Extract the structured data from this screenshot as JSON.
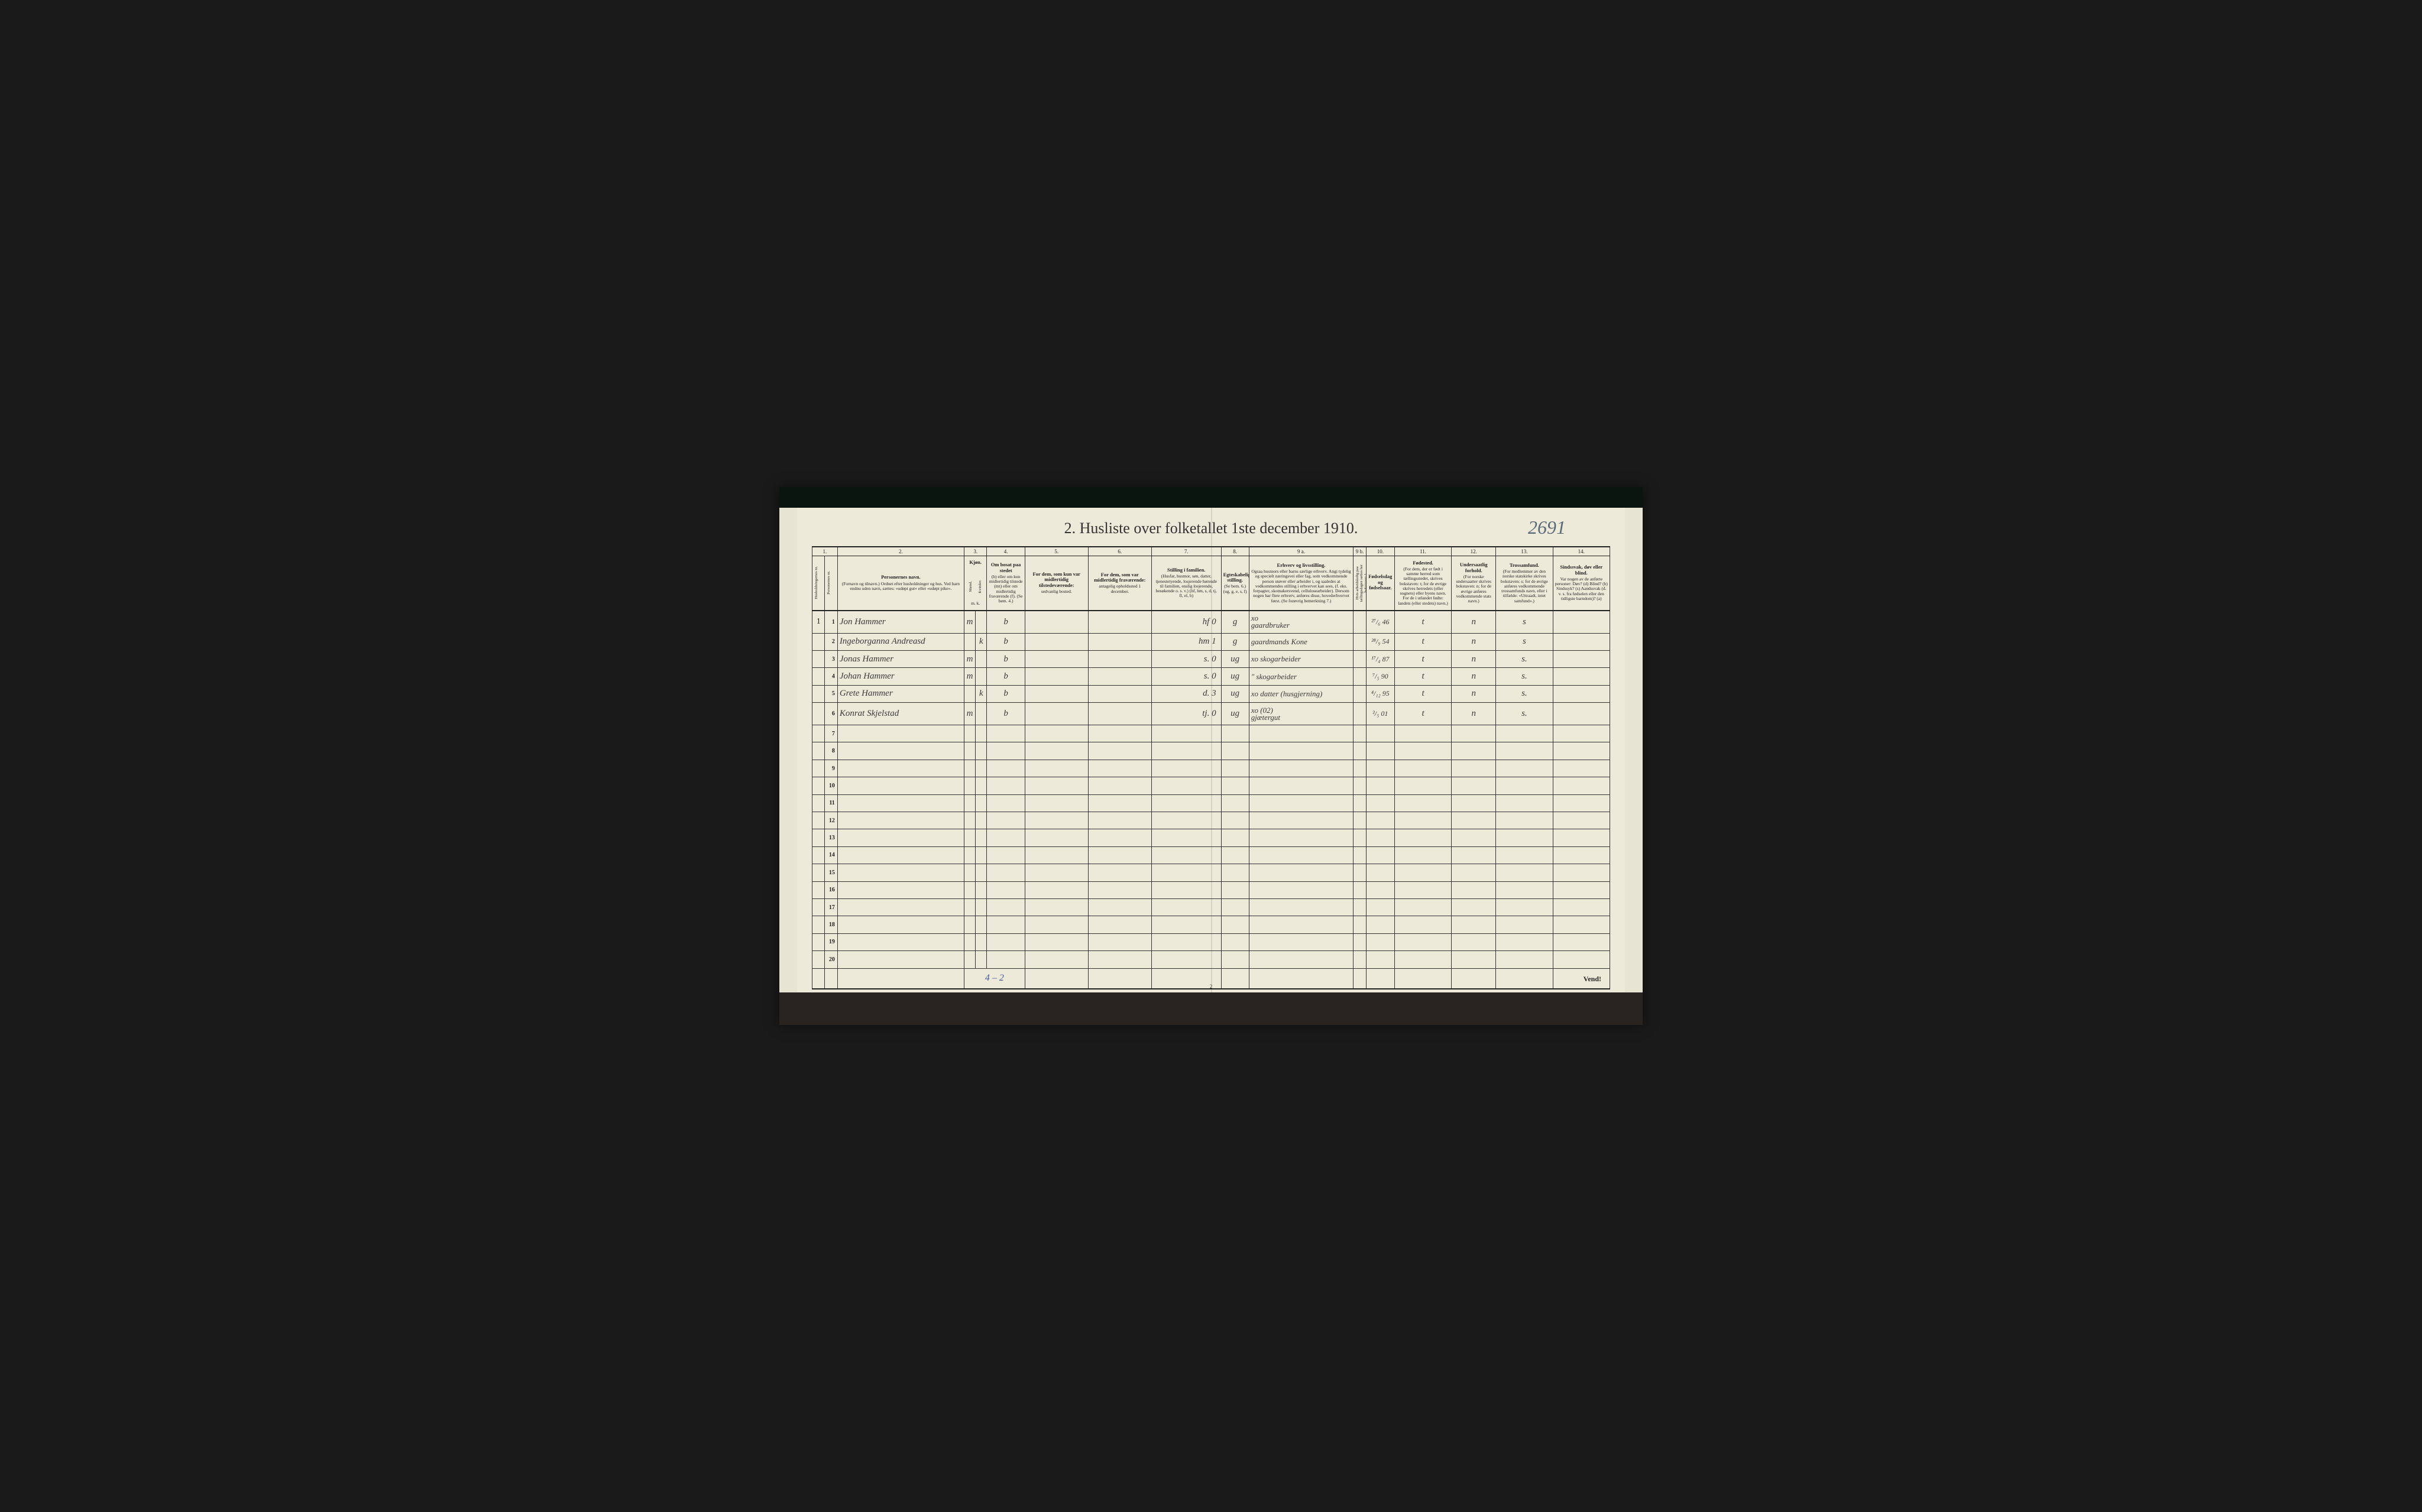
{
  "title": "2.  Husliste over folketallet 1ste december 1910.",
  "page_annotation": "2691",
  "footer_page_num": "2",
  "vend": "Vend!",
  "footer_tally": "4 – 2",
  "colors": {
    "paper": "#eeead9",
    "paper_outer": "#e8e4d4",
    "ink": "#222222",
    "handwriting": "#3a3a3a",
    "pencil": "#5a6a7a",
    "blue_pencil": "#4a5aa0",
    "border_dark": "#0a1510"
  },
  "column_numbers": [
    "1.",
    "2.",
    "3.",
    "4.",
    "5.",
    "6.",
    "7.",
    "8.",
    "9 a.",
    "9 b.",
    "10.",
    "11.",
    "12.",
    "13.",
    "14."
  ],
  "headers": {
    "h1": {
      "side_a": "Husholdningernes nr.",
      "side_b": "Personernes nr."
    },
    "h2": {
      "main": "Personernes navn.",
      "sub": "(Fornavn og tilnavn.)\nOrdnet efter husholdninger og hus.\nVed barn endnu uden navn, sættes: «udøpt gut» eller «udøpt pike»."
    },
    "h3": {
      "main": "Kjøn.",
      "a": "Mænd.",
      "b": "Kvinder.",
      "mk": "m.  k."
    },
    "h4": {
      "main": "Om bosat paa stedet",
      "sub": "(b) eller om kun midlertidig tilstede (mt) eller om midlertidig fraværende (f).\n(Se bem. 4.)"
    },
    "h5": {
      "main": "For dem, som kun var midlertidig tilstedeværende:",
      "sub": "sedvanlig bosted."
    },
    "h6": {
      "main": "For dem, som var midlertidig fraværende:",
      "sub": "antagelig opholdssted 1 december."
    },
    "h7": {
      "main": "Stilling i familien.",
      "sub": "(Husfar, husmor, søn, datter, tjenestetyende, losjerende hørende til familien, enslig losjerende, besøkende o. s. v.)\n(hf, hm, s, d, tj, fl, el, b)"
    },
    "h8": {
      "main": "Egteskabelig stilling.",
      "sub": "(Se bem. 6.)\n(ug, g, e, s, f)"
    },
    "h9a": {
      "main": "Erhverv og livsstilling.",
      "sub": "Ogsaa husmors eller barns særlige erhverv. Angi tydelig og specielt næringsvei eller fag, som vedkommende person utøver eller arbeider i, og saaledes at vedkommendes stilling i erhvervet kan sees, (f. eks. forpagter, skomakersvend, cellulosearbeider). Dersom nogen har flere erhverv, anføres disse, hovederhvervet først.\n(Se forøvrig bemerkning 7.)"
    },
    "h9b": {
      "side": "Hvis arbeidsledig paa tællingsdagen sættes her bokstaven: l."
    },
    "h10": {
      "main": "Fødselsdag og fødselsaar."
    },
    "h11": {
      "main": "Fødested.",
      "sub": "(For dem, der er født i samme herred som tællingsstedet, skrives bokstaven: t; for de øvrige skrives herredets (eller sognets) eller byens navn. For de i utlandet fødte: landets (eller stedets) navn.)"
    },
    "h12": {
      "main": "Undersaatlig forhold.",
      "sub": "(For norske undersaatter skrives bokstaven: n; for de øvrige anføres vedkommende stats navn.)"
    },
    "h13": {
      "main": "Trossamfund.",
      "sub": "(For medlemmer av den norske statskirke skrives bokstaven: s; for de øvrige anføres vedkommende trossamfunds navn, eller i tilfælde: «Uttraadt, intet samfund».)"
    },
    "h14": {
      "main": "Sindssvak, døv eller blind.",
      "sub": "Var nogen av de anførte personer:\nDøv? (d)\nBlind? (b)\nSindssyk? (s)\nAandssvak (d. v. s. fra fødselen eller den tidligste barndom)? (a)"
    }
  },
  "rows": [
    {
      "hh": "1",
      "n": "1",
      "name": "Jon Hammer",
      "m": "m",
      "k": "",
      "b": "b",
      "c5": "",
      "c6": "",
      "fam": "hf   0",
      "eg": "g",
      "erh": "xo\ngaardbruker",
      "dob": "²⁷/₆ 46",
      "fsted": "t",
      "und": "n",
      "tro": "s",
      "c14": ""
    },
    {
      "hh": "",
      "n": "2",
      "name": "Ingeborganna Andreasd",
      "m": "",
      "k": "k",
      "b": "b",
      "c5": "",
      "c6": "",
      "fam": "hm   1",
      "eg": "g",
      "erh": "gaardmands Kone",
      "dob": "²⁸/₉ 54",
      "fsted": "t",
      "und": "n",
      "tro": "s",
      "c14": ""
    },
    {
      "hh": "",
      "n": "3",
      "name": "Jonas Hammer",
      "m": "m",
      "k": "",
      "b": "b",
      "c5": "",
      "c6": "",
      "fam": "s.   0",
      "eg": "ug",
      "erh": "xo  skogarbeider",
      "dob": "¹⁷/₄ 87",
      "fsted": "t",
      "und": "n",
      "tro": "s.",
      "c14": ""
    },
    {
      "hh": "",
      "n": "4",
      "name": "Johan Hammer",
      "m": "m",
      "k": "",
      "b": "b",
      "c5": "",
      "c6": "",
      "fam": "s.   0",
      "eg": "ug",
      "erh": "\"  skogarbeider",
      "dob": "⁷/₅ 90",
      "fsted": "t",
      "und": "n",
      "tro": "s.",
      "c14": ""
    },
    {
      "hh": "",
      "n": "5",
      "name": "Grete Hammer",
      "m": "",
      "k": "k",
      "b": "b",
      "c5": "",
      "c6": "",
      "fam": "d.   3",
      "eg": "ug",
      "erh": "xo  datter (husgjerning)",
      "dob": "⁴/₁₂ 95",
      "fsted": "t",
      "und": "n",
      "tro": "s.",
      "c14": ""
    },
    {
      "hh": "",
      "n": "6",
      "name": "Konrat Skjelstad",
      "m": "m",
      "k": "",
      "b": "b",
      "c5": "",
      "c6": "",
      "fam": "tj.   0",
      "eg": "ug",
      "erh": "xo (02)\ngjætergut",
      "dob": "²/₅ 01",
      "fsted": "t",
      "und": "n",
      "tro": "s.",
      "c14": ""
    },
    {
      "hh": "",
      "n": "7",
      "name": "",
      "m": "",
      "k": "",
      "b": "",
      "c5": "",
      "c6": "",
      "fam": "",
      "eg": "",
      "erh": "",
      "dob": "",
      "fsted": "",
      "und": "",
      "tro": "",
      "c14": ""
    },
    {
      "hh": "",
      "n": "8",
      "name": "",
      "m": "",
      "k": "",
      "b": "",
      "c5": "",
      "c6": "",
      "fam": "",
      "eg": "",
      "erh": "",
      "dob": "",
      "fsted": "",
      "und": "",
      "tro": "",
      "c14": ""
    },
    {
      "hh": "",
      "n": "9",
      "name": "",
      "m": "",
      "k": "",
      "b": "",
      "c5": "",
      "c6": "",
      "fam": "",
      "eg": "",
      "erh": "",
      "dob": "",
      "fsted": "",
      "und": "",
      "tro": "",
      "c14": ""
    },
    {
      "hh": "",
      "n": "10",
      "name": "",
      "m": "",
      "k": "",
      "b": "",
      "c5": "",
      "c6": "",
      "fam": "",
      "eg": "",
      "erh": "",
      "dob": "",
      "fsted": "",
      "und": "",
      "tro": "",
      "c14": ""
    },
    {
      "hh": "",
      "n": "11",
      "name": "",
      "m": "",
      "k": "",
      "b": "",
      "c5": "",
      "c6": "",
      "fam": "",
      "eg": "",
      "erh": "",
      "dob": "",
      "fsted": "",
      "und": "",
      "tro": "",
      "c14": ""
    },
    {
      "hh": "",
      "n": "12",
      "name": "",
      "m": "",
      "k": "",
      "b": "",
      "c5": "",
      "c6": "",
      "fam": "",
      "eg": "",
      "erh": "",
      "dob": "",
      "fsted": "",
      "und": "",
      "tro": "",
      "c14": ""
    },
    {
      "hh": "",
      "n": "13",
      "name": "",
      "m": "",
      "k": "",
      "b": "",
      "c5": "",
      "c6": "",
      "fam": "",
      "eg": "",
      "erh": "",
      "dob": "",
      "fsted": "",
      "und": "",
      "tro": "",
      "c14": ""
    },
    {
      "hh": "",
      "n": "14",
      "name": "",
      "m": "",
      "k": "",
      "b": "",
      "c5": "",
      "c6": "",
      "fam": "",
      "eg": "",
      "erh": "",
      "dob": "",
      "fsted": "",
      "und": "",
      "tro": "",
      "c14": ""
    },
    {
      "hh": "",
      "n": "15",
      "name": "",
      "m": "",
      "k": "",
      "b": "",
      "c5": "",
      "c6": "",
      "fam": "",
      "eg": "",
      "erh": "",
      "dob": "",
      "fsted": "",
      "und": "",
      "tro": "",
      "c14": ""
    },
    {
      "hh": "",
      "n": "16",
      "name": "",
      "m": "",
      "k": "",
      "b": "",
      "c5": "",
      "c6": "",
      "fam": "",
      "eg": "",
      "erh": "",
      "dob": "",
      "fsted": "",
      "und": "",
      "tro": "",
      "c14": ""
    },
    {
      "hh": "",
      "n": "17",
      "name": "",
      "m": "",
      "k": "",
      "b": "",
      "c5": "",
      "c6": "",
      "fam": "",
      "eg": "",
      "erh": "",
      "dob": "",
      "fsted": "",
      "und": "",
      "tro": "",
      "c14": ""
    },
    {
      "hh": "",
      "n": "18",
      "name": "",
      "m": "",
      "k": "",
      "b": "",
      "c5": "",
      "c6": "",
      "fam": "",
      "eg": "",
      "erh": "",
      "dob": "",
      "fsted": "",
      "und": "",
      "tro": "",
      "c14": ""
    },
    {
      "hh": "",
      "n": "19",
      "name": "",
      "m": "",
      "k": "",
      "b": "",
      "c5": "",
      "c6": "",
      "fam": "",
      "eg": "",
      "erh": "",
      "dob": "",
      "fsted": "",
      "und": "",
      "tro": "",
      "c14": ""
    },
    {
      "hh": "",
      "n": "20",
      "name": "",
      "m": "",
      "k": "",
      "b": "",
      "c5": "",
      "c6": "",
      "fam": "",
      "eg": "",
      "erh": "",
      "dob": "",
      "fsted": "",
      "und": "",
      "tro": "",
      "c14": ""
    }
  ]
}
